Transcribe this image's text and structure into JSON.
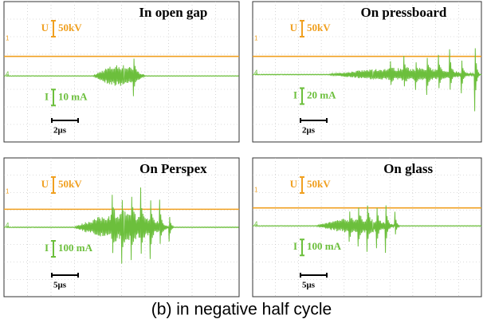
{
  "panels": [
    {
      "title": "In open gap",
      "voltage_scale": "50kV",
      "voltage_symbol": "U",
      "current_scale": "10 mA",
      "current_symbol": "I",
      "time_scale": "2μs",
      "ch1": "1",
      "ch4": "4"
    },
    {
      "title": "On pressboard",
      "voltage_scale": "50kV",
      "voltage_symbol": "U",
      "current_scale": "20 mA",
      "current_symbol": "I",
      "time_scale": "2μs",
      "ch1": "1",
      "ch4": "4"
    },
    {
      "title": "On Perspex",
      "voltage_scale": "50kV",
      "voltage_symbol": "U",
      "current_scale": "100 mA",
      "current_symbol": "I",
      "time_scale": "5μs",
      "ch1": "1",
      "ch4": "4"
    },
    {
      "title": "On glass",
      "voltage_scale": "50kV",
      "voltage_symbol": "U",
      "current_scale": "100 mA",
      "current_symbol": "I",
      "time_scale": "5μs",
      "ch1": "1",
      "ch4": "4"
    }
  ],
  "caption": "(b)  in negative half cycle"
}
